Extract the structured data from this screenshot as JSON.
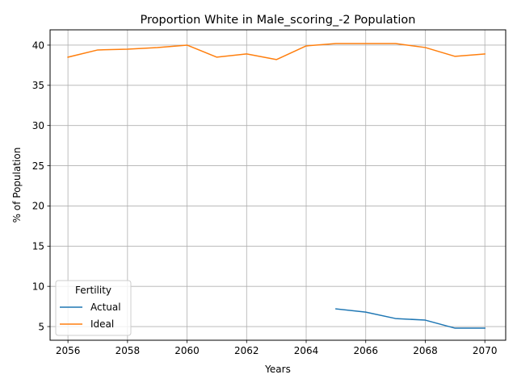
{
  "chart_data": {
    "type": "line",
    "title": "Proportion White in Male_scoring_-2 Population",
    "xlabel": "Years",
    "ylabel": "% of Population",
    "xlim": [
      2055.4,
      2070.7
    ],
    "ylim": [
      3.3,
      41.9
    ],
    "xticks": [
      2056,
      2058,
      2060,
      2062,
      2064,
      2066,
      2068,
      2070
    ],
    "yticks": [
      5,
      10,
      15,
      20,
      25,
      30,
      35,
      40
    ],
    "grid": true,
    "legend": {
      "title": "Fertility",
      "placement": "lower-left"
    },
    "series": [
      {
        "name": "Actual",
        "color": "#1f77b4",
        "x": [
          2065,
          2066,
          2067,
          2068,
          2069,
          2070
        ],
        "y": [
          7.2,
          6.8,
          6.0,
          5.8,
          4.8,
          4.8
        ]
      },
      {
        "name": "Ideal",
        "color": "#ff7f0e",
        "x": [
          2056,
          2057,
          2058,
          2059,
          2060,
          2061,
          2062,
          2063,
          2064,
          2065,
          2066,
          2067,
          2068,
          2069,
          2070
        ],
        "y": [
          38.5,
          39.4,
          39.5,
          39.7,
          40.0,
          38.5,
          38.9,
          38.2,
          39.9,
          40.2,
          40.2,
          40.2,
          39.7,
          38.6,
          38.9
        ]
      }
    ]
  }
}
